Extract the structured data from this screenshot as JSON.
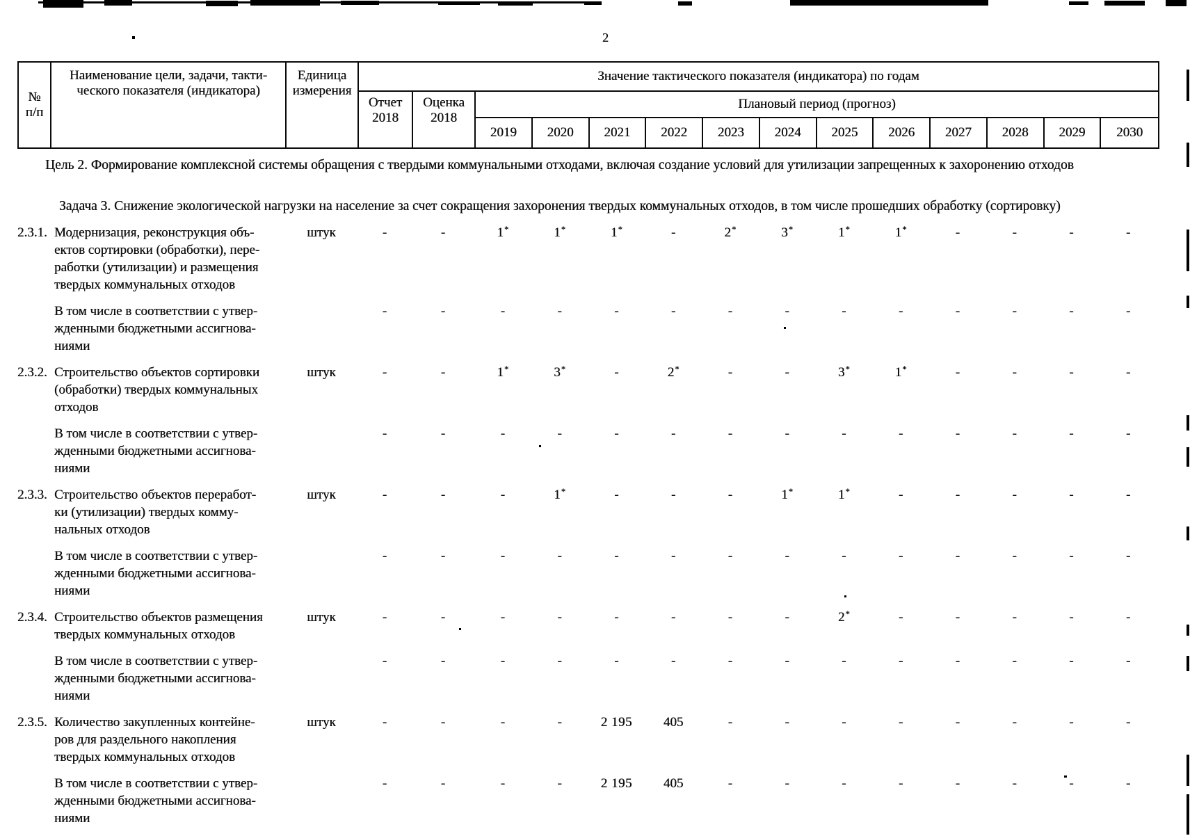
{
  "page": {
    "number": "2"
  },
  "table": {
    "header": {
      "col_num": "№\nп/п",
      "col_name": "Наименование цели, задачи, такти-\nческого показателя (индикатора)",
      "col_unit": "Единица\nизмерения",
      "values_title": "Значение тактического показателя (индикатора) по годам",
      "report": "Отчет\n2018",
      "estimate": "Оценка\n2018",
      "plan_title": "Плановый период (прогноз)",
      "years": [
        "2019",
        "2020",
        "2021",
        "2022",
        "2023",
        "2024",
        "2025",
        "2026",
        "2027",
        "2028",
        "2029",
        "2030"
      ]
    },
    "goal": "Цель 2. Формирование комплексной системы обращения с твердыми коммунальными отходами, включая создание условий для утилизации запрещенных к захоронению отходов",
    "task": "Задача 3. Снижение экологической нагрузки на население за счет сокращения захоронения твердых коммунальных отходов, в том числе прошедших обработку (сортировку)",
    "rows": [
      {
        "num": "2.3.1.",
        "name": "Модернизация, реконструкция объ-\nектов сортировки (обработки), пере-\nработки (утилизации) и размещения\nтвердых коммунальных отходов",
        "unit": "штук",
        "sub": false,
        "values": [
          "-",
          "-",
          "1*",
          "1*",
          "1*",
          "-",
          "2*",
          "3*",
          "1*",
          "1*",
          "-",
          "-",
          "-",
          "-"
        ]
      },
      {
        "num": "",
        "name": "В том числе в соответствии с утвер-\nжденными бюджетными ассигнова-\nниями",
        "unit": "",
        "sub": true,
        "values": [
          "-",
          "-",
          "-",
          "-",
          "-",
          "-",
          "-",
          "-",
          "-",
          "-",
          "-",
          "-",
          "-",
          "-"
        ]
      },
      {
        "num": "2.3.2.",
        "name": "Строительство объектов сортировки\n(обработки) твердых коммунальных\nотходов",
        "unit": "штук",
        "sub": false,
        "values": [
          "-",
          "-",
          "1*",
          "3*",
          "-",
          "2*",
          "-",
          "-",
          "3*",
          "1*",
          "-",
          "-",
          "-",
          "-"
        ]
      },
      {
        "num": "",
        "name": "В том числе в соответствии с утвер-\nжденными бюджетными ассигнова-\nниями",
        "unit": "",
        "sub": true,
        "values": [
          "-",
          "-",
          "-",
          "-",
          "-",
          "-",
          "-",
          "-",
          "-",
          "-",
          "-",
          "-",
          "-",
          "-"
        ]
      },
      {
        "num": "2.3.3.",
        "name": "Строительство объектов переработ-\nки (утилизации) твердых комму-\nнальных отходов",
        "unit": "штук",
        "sub": false,
        "values": [
          "-",
          "-",
          "-",
          "1*",
          "-",
          "-",
          "-",
          "1*",
          "1*",
          "-",
          "-",
          "-",
          "-",
          "-"
        ]
      },
      {
        "num": "",
        "name": "В том числе в соответствии с утвер-\nжденными бюджетными ассигнова-\nниями",
        "unit": "",
        "sub": true,
        "values": [
          "-",
          "-",
          "-",
          "-",
          "-",
          "-",
          "-",
          "-",
          "-",
          "-",
          "-",
          "-",
          "-",
          "-"
        ]
      },
      {
        "num": "2.3.4.",
        "name": "Строительство объектов размещения\nтвердых коммунальных отходов",
        "unit": "штук",
        "sub": false,
        "values": [
          "-",
          "-",
          "-",
          "-",
          "-",
          "-",
          "-",
          "-",
          "2*",
          "-",
          "-",
          "-",
          "-",
          "-"
        ]
      },
      {
        "num": "",
        "name": "В том числе в соответствии с утвер-\nжденными бюджетными ассигнова-\nниями",
        "unit": "",
        "sub": true,
        "values": [
          "-",
          "-",
          "-",
          "-",
          "-",
          "-",
          "-",
          "-",
          "-",
          "-",
          "-",
          "-",
          "-",
          "-"
        ]
      },
      {
        "num": "2.3.5.",
        "name": "Количество закупленных контейне-\nров для раздельного накопления\nтвердых коммунальных отходов",
        "unit": "штук",
        "sub": false,
        "values": [
          "-",
          "-",
          "-",
          "-",
          "2 195",
          "405",
          "-",
          "-",
          "-",
          "-",
          "-",
          "-",
          "-",
          "-"
        ]
      },
      {
        "num": "",
        "name": "В том числе в соответствии с утвер-\nжденными бюджетными ассигнова-\nниями",
        "unit": "",
        "sub": true,
        "values": [
          "-",
          "-",
          "-",
          "-",
          "2 195",
          "405",
          "-",
          "-",
          "-",
          "-",
          "-",
          "-",
          "-",
          "-"
        ]
      }
    ]
  }
}
